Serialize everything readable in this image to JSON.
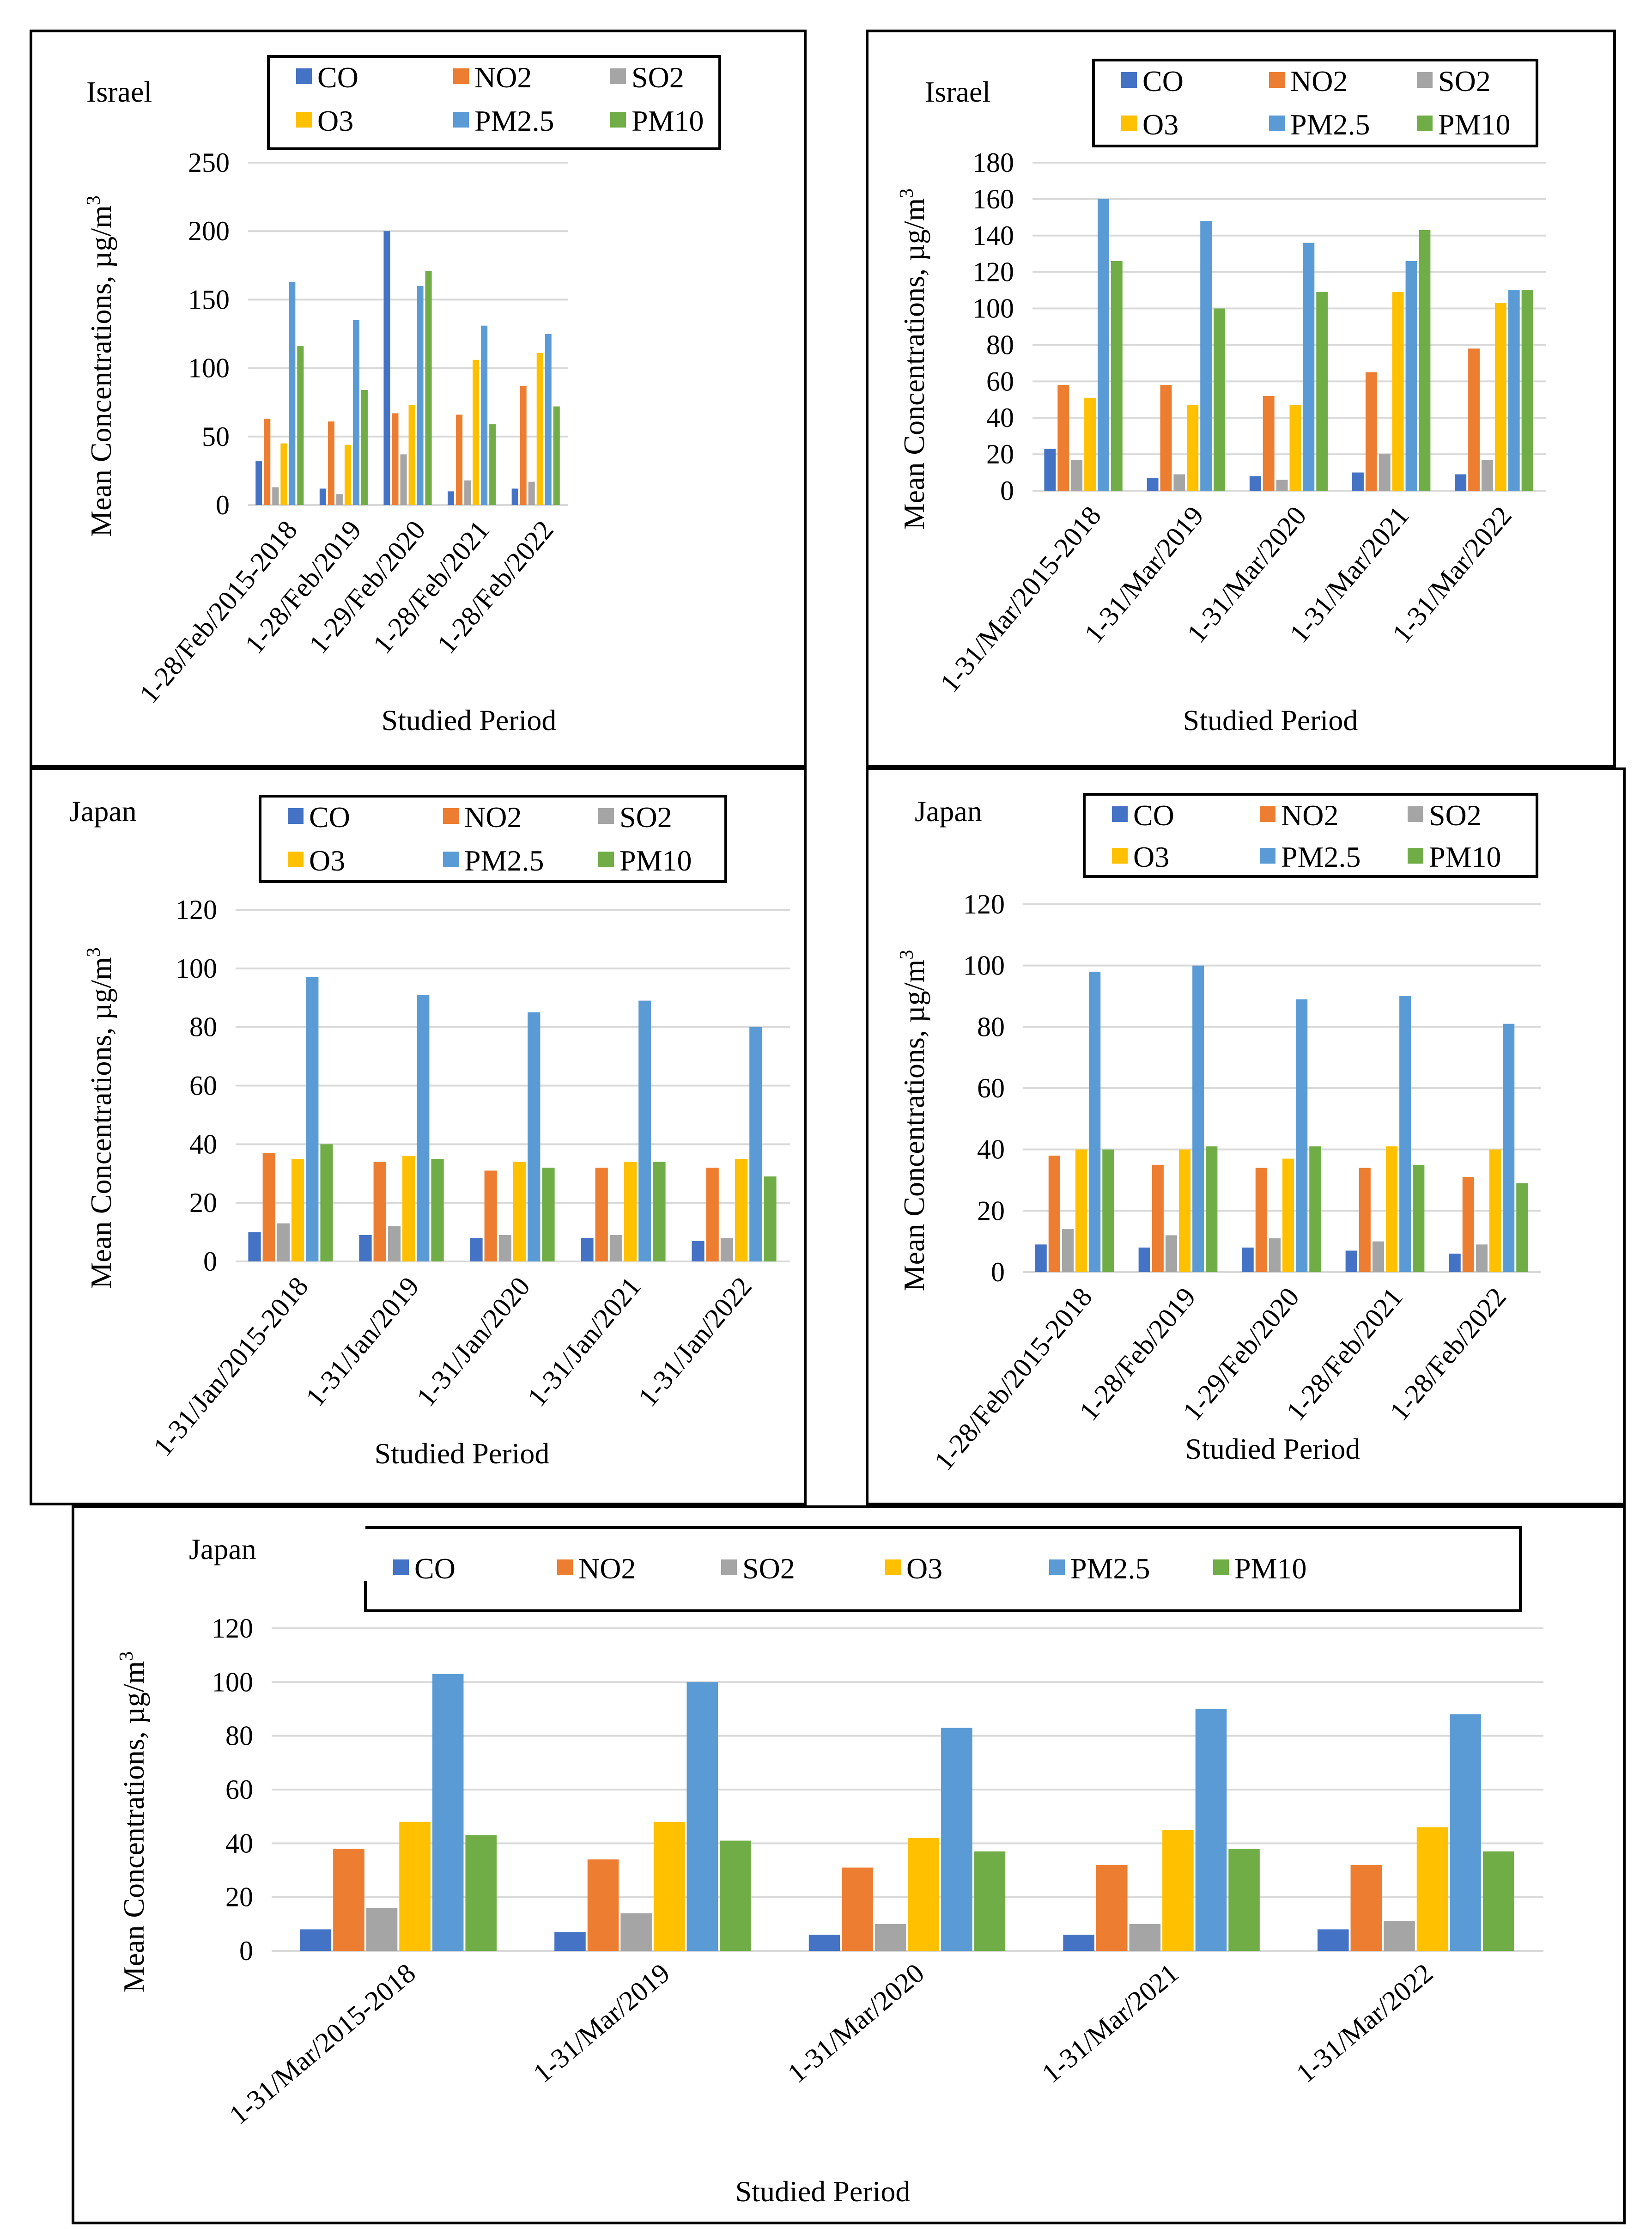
{
  "colors": {
    "CO": "#4472C4",
    "NO2": "#ED7D31",
    "SO2": "#A5A5A5",
    "O3": "#FFC000",
    "PM2.5": "#5B9BD5",
    "PM10": "#70AD47",
    "grid": "#D9D9D9"
  },
  "common": {
    "ylabel": "Mean Concentrations, µg/m",
    "ylabel_sup": "3",
    "xlabel": "Studied Period"
  },
  "chart_data": [
    {
      "type": "bar",
      "title": "Israel",
      "categories": [
        "1-28/Feb/2015-2018",
        "1-28/Feb/2019",
        "1-29/Feb/2020",
        "1-28/Feb/2021",
        "1-28/Feb/2022"
      ],
      "ylim": [
        0,
        250
      ],
      "yticks": [
        0,
        50,
        100,
        150,
        200,
        250
      ],
      "series": [
        {
          "name": "CO",
          "values": [
            32,
            12,
            200,
            10,
            12
          ]
        },
        {
          "name": "NO2",
          "values": [
            63,
            61,
            67,
            66,
            87
          ]
        },
        {
          "name": "SO2",
          "values": [
            13,
            8,
            37,
            18,
            17
          ]
        },
        {
          "name": "O3",
          "values": [
            45,
            44,
            73,
            106,
            111
          ]
        },
        {
          "name": "PM2.5",
          "values": [
            163,
            135,
            160,
            131,
            125
          ]
        },
        {
          "name": "PM10",
          "values": [
            116,
            84,
            171,
            59,
            72
          ]
        }
      ]
    },
    {
      "type": "bar",
      "title": "Israel",
      "categories": [
        "1-31/Mar/2015-2018",
        "1-31/Mar/2019",
        "1-31/Mar/2020",
        "1-31/Mar/2021",
        "1-31/Mar/2022"
      ],
      "ylim": [
        0,
        180
      ],
      "yticks": [
        0,
        20,
        40,
        60,
        80,
        100,
        120,
        140,
        160,
        180
      ],
      "series": [
        {
          "name": "CO",
          "values": [
            23,
            7,
            8,
            10,
            9
          ]
        },
        {
          "name": "NO2",
          "values": [
            58,
            58,
            52,
            65,
            78
          ]
        },
        {
          "name": "SO2",
          "values": [
            17,
            9,
            6,
            20,
            17
          ]
        },
        {
          "name": "O3",
          "values": [
            51,
            47,
            47,
            109,
            103
          ]
        },
        {
          "name": "PM2.5",
          "values": [
            160,
            148,
            136,
            126,
            110
          ]
        },
        {
          "name": "PM10",
          "values": [
            126,
            100,
            109,
            143,
            110
          ]
        }
      ]
    },
    {
      "type": "bar",
      "title": "Japan",
      "categories": [
        "1-31/Jan/2015-2018",
        "1-31/Jan/2019",
        "1-31/Jan/2020",
        "1-31/Jan/2021",
        "1-31/Jan/2022"
      ],
      "ylim": [
        0,
        120
      ],
      "yticks": [
        0,
        20,
        40,
        60,
        80,
        100,
        120
      ],
      "series": [
        {
          "name": "CO",
          "values": [
            10,
            9,
            8,
            8,
            7
          ]
        },
        {
          "name": "NO2",
          "values": [
            37,
            34,
            31,
            32,
            32
          ]
        },
        {
          "name": "SO2",
          "values": [
            13,
            12,
            9,
            9,
            8
          ]
        },
        {
          "name": "O3",
          "values": [
            35,
            36,
            34,
            34,
            35
          ]
        },
        {
          "name": "PM2.5",
          "values": [
            97,
            91,
            85,
            89,
            80
          ]
        },
        {
          "name": "PM10",
          "values": [
            40,
            35,
            32,
            34,
            29
          ]
        }
      ]
    },
    {
      "type": "bar",
      "title": "Japan",
      "categories": [
        "1-28/Feb/2015-2018",
        "1-28/Feb/2019",
        "1-29/Feb/2020",
        "1-28/Feb/2021",
        "1-28/Feb/2022"
      ],
      "ylim": [
        0,
        120
      ],
      "yticks": [
        0,
        20,
        40,
        60,
        80,
        100,
        120
      ],
      "series": [
        {
          "name": "CO",
          "values": [
            9,
            8,
            8,
            7,
            6
          ]
        },
        {
          "name": "NO2",
          "values": [
            38,
            35,
            34,
            34,
            31
          ]
        },
        {
          "name": "SO2",
          "values": [
            14,
            12,
            11,
            10,
            9
          ]
        },
        {
          "name": "O3",
          "values": [
            40,
            40,
            37,
            41,
            40
          ]
        },
        {
          "name": "PM2.5",
          "values": [
            98,
            100,
            89,
            90,
            81
          ]
        },
        {
          "name": "PM10",
          "values": [
            40,
            41,
            41,
            35,
            29
          ]
        }
      ]
    },
    {
      "type": "bar",
      "title": "Japan",
      "categories": [
        "1-31/Mar/2015-2018",
        "1-31/Mar/2019",
        "1-31/Mar/2020",
        "1-31/Mar/2021",
        "1-31/Mar/2022"
      ],
      "ylim": [
        0,
        120
      ],
      "yticks": [
        0,
        20,
        40,
        60,
        80,
        100,
        120
      ],
      "series": [
        {
          "name": "CO",
          "values": [
            8,
            7,
            6,
            6,
            8
          ]
        },
        {
          "name": "NO2",
          "values": [
            38,
            34,
            31,
            32,
            32
          ]
        },
        {
          "name": "SO2",
          "values": [
            16,
            14,
            10,
            10,
            11
          ]
        },
        {
          "name": "O3",
          "values": [
            48,
            48,
            42,
            45,
            46
          ]
        },
        {
          "name": "PM2.5",
          "values": [
            103,
            100,
            83,
            90,
            88
          ]
        },
        {
          "name": "PM10",
          "values": [
            43,
            41,
            37,
            38,
            37
          ]
        }
      ]
    }
  ]
}
